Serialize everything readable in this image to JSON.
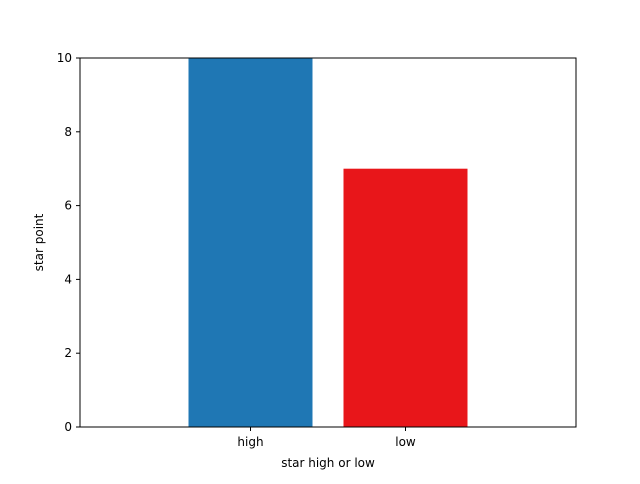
{
  "chart_data": {
    "type": "bar",
    "title": "",
    "xlabel": "star high or low",
    "ylabel": "star point",
    "categories": [
      "high",
      "low"
    ],
    "values": [
      10,
      7
    ],
    "colors": [
      "#1f77b4",
      "#e8161a"
    ],
    "ylim": [
      0,
      10
    ],
    "yticks": [
      0,
      2,
      4,
      6,
      8,
      10
    ],
    "grid": false,
    "legend": "none"
  }
}
